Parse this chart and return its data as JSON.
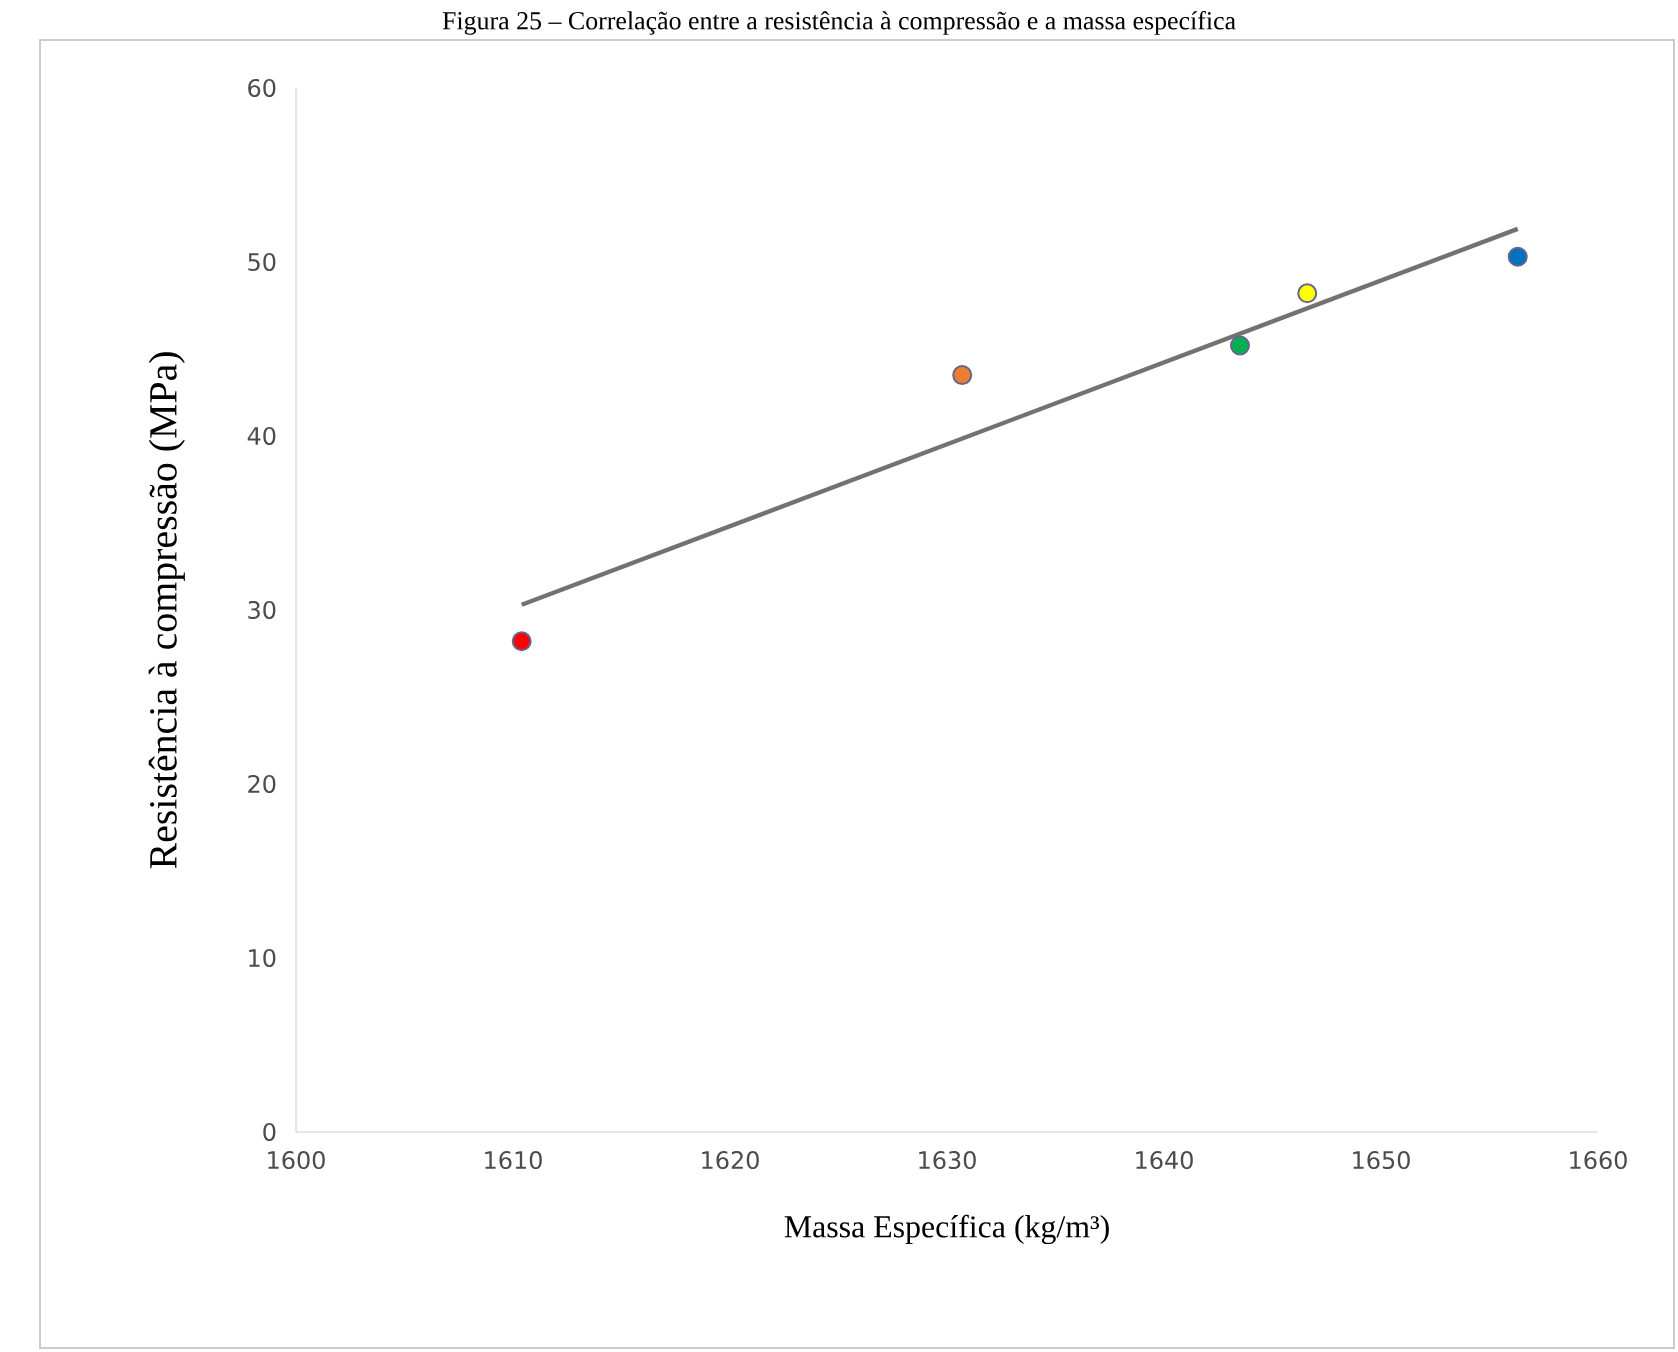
{
  "chart_data": {
    "type": "scatter",
    "title": "Figura 25 – Correlação entre a resistência à compressão e a massa específica",
    "xlabel": "Massa Específica (kg/m³)",
    "ylabel": "Resistência à compressão (MPa)",
    "series": [
      {
        "x": [
          1610.4,
          1630.7,
          1643.5,
          1646.6,
          1656.3
        ],
        "values": [
          28.2,
          43.5,
          45.2,
          48.2,
          50.3
        ],
        "colors": [
          "#ff0000",
          "#ed7d31",
          "#00b050",
          "#ffff00",
          "#0070c0"
        ],
        "marker": "circle"
      },
      {
        "type": "line",
        "x": [
          1610.4,
          1656.3
        ],
        "values": [
          30.3,
          51.9
        ],
        "color": "#767171",
        "marker": "none"
      }
    ],
    "xlim": [
      1600,
      1660
    ],
    "xticks": [
      1600,
      1610,
      1620,
      1630,
      1640,
      1650,
      1660
    ],
    "ylim": [
      0,
      60
    ],
    "yticks": [
      0,
      10,
      20,
      30,
      40,
      50,
      60
    ],
    "grid": false
  }
}
